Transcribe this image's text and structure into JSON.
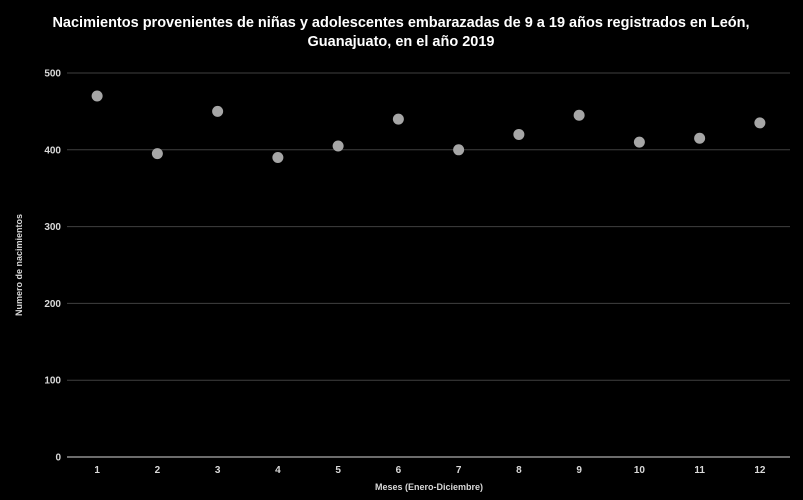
{
  "chart_data": {
    "type": "scatter",
    "title": "Nacimientos provenientes de niñas y adolescentes embarazadas de 9 a 19 años registrados en León,",
    "title_line2": "Guanajuato, en el año 2019",
    "xlabel": "Meses (Enero-Diciembre)",
    "ylabel": "Numero de nacimientos",
    "x_ticks": [
      "1",
      "2",
      "3",
      "4",
      "5",
      "6",
      "7",
      "8",
      "9",
      "10",
      "11",
      "12"
    ],
    "y_ticks": [
      "0",
      "100",
      "200",
      "300",
      "400",
      "500"
    ],
    "xlim": [
      0.5,
      12.5
    ],
    "ylim": [
      0,
      500
    ],
    "grid": true,
    "series": [
      {
        "x": [
          1,
          2,
          3,
          4,
          5,
          6,
          7,
          8,
          9,
          10,
          11,
          12
        ],
        "y": [
          470,
          395,
          450,
          390,
          405,
          440,
          400,
          420,
          445,
          410,
          415,
          435
        ]
      }
    ],
    "colors": {
      "background": "#000000",
      "marker": "#a6a6a6",
      "gridline": "#404040",
      "text": "#d9d9d9",
      "title": "#ffffff",
      "axis": "#d9d9d9"
    }
  }
}
